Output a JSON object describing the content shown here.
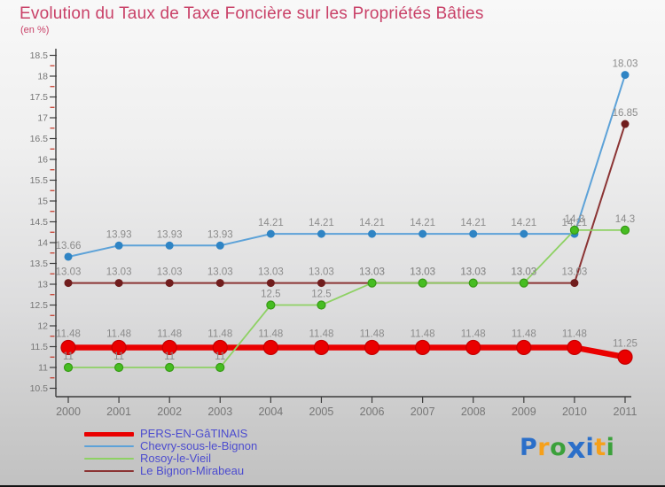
{
  "chart_data": {
    "type": "line",
    "title": "Evolution du Taux de Taxe Foncière sur les Propriétés Bâties",
    "subtitle": "(en %)",
    "xlabel": "",
    "ylabel": "",
    "x": [
      2000,
      2001,
      2002,
      2003,
      2004,
      2005,
      2006,
      2007,
      2008,
      2009,
      2010,
      2011
    ],
    "ylim": [
      10.5,
      18.5
    ],
    "ytick_step": 0.5,
    "ytick_minor_step": 0.25,
    "grid": false,
    "legend_position": "bottom-left",
    "draw_order": [
      0,
      1,
      3,
      2
    ],
    "colors": {
      "axis": "#3c3c3c",
      "tick_label": "#767676",
      "data_label": "#8b8b8b",
      "minor_tick": "#c23120"
    },
    "series": [
      {
        "name": "PERS-EN-GâTINAIS",
        "color": "#ea0000",
        "dot_color": "#ea0000",
        "dot_stroke": "#c40000",
        "line_width": 6.5,
        "dot_radius": 8,
        "label_offset": 12,
        "values": [
          11.48,
          11.48,
          11.48,
          11.48,
          11.48,
          11.48,
          11.48,
          11.48,
          11.48,
          11.48,
          11.48,
          11.25
        ]
      },
      {
        "name": "Chevry-sous-le-Bignon",
        "color": "#5da2d8",
        "dot_color": "#2f84c4",
        "dot_stroke": "none",
        "line_width": 2,
        "dot_radius": 4.5,
        "label_offset": 9,
        "values": [
          13.66,
          13.93,
          13.93,
          13.93,
          14.21,
          14.21,
          14.21,
          14.21,
          14.21,
          14.21,
          14.21,
          18.03
        ]
      },
      {
        "name": "Rosoy-le-Vieil",
        "color": "#8ed164",
        "dot_color": "#46bd22",
        "dot_stroke": "#379a15",
        "line_width": 1.8,
        "dot_radius": 4.5,
        "label_offset": 9,
        "values": [
          11,
          11,
          11,
          11,
          12.5,
          12.5,
          13.03,
          13.03,
          13.03,
          13.03,
          14.3,
          14.3
        ]
      },
      {
        "name": "Le Bignon-Mirabeau",
        "color": "#8b3434",
        "dot_color": "#701d1d",
        "dot_stroke": "none",
        "line_width": 2,
        "dot_radius": 4.5,
        "label_offset": 9,
        "values": [
          13.03,
          13.03,
          13.03,
          13.03,
          13.03,
          13.03,
          13.03,
          13.03,
          13.03,
          13.03,
          13.03,
          16.85
        ]
      }
    ]
  },
  "branding": {
    "logo_text": "Proxiti",
    "letters": [
      {
        "ch": "P",
        "color": "#2b6fc9",
        "big": false
      },
      {
        "ch": "r",
        "color": "#f6a01a",
        "big": false
      },
      {
        "ch": "o",
        "color": "#3ba13b",
        "big": false
      },
      {
        "ch": "x",
        "color": "#2b6fc9",
        "big": true
      },
      {
        "ch": "i",
        "color": "#2b6fc9",
        "big": false
      },
      {
        "ch": "t",
        "color": "#f6a01a",
        "big": false
      },
      {
        "ch": "i",
        "color": "#3ba13b",
        "big": false
      }
    ]
  }
}
